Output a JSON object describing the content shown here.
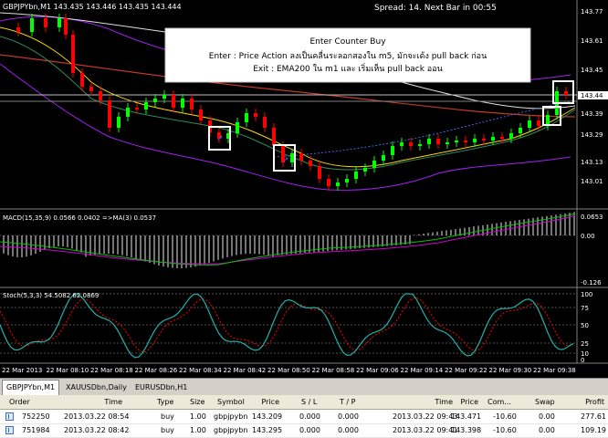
{
  "chart": {
    "title": "GBPJPYbn,M1  143.435 143.446 143.435 143.444",
    "spread_text": "Spread:  14.  Next Bar in 00:55",
    "annotation": [
      "Enter Counter Buy",
      "Enter : Price Action ลงเป็นคลื่นระลอกสองใน m5, มักจะเด้ง pull back ก่อน",
      "Exit : EMA200 ใน m1 และ เริ่มเห็น pull back ออน"
    ],
    "price_labels": [
      "143.77",
      "143.61",
      "143.45",
      "143.44",
      "143.39",
      "143.29",
      "143.13",
      "143.01"
    ],
    "current_price_label": "143.44",
    "macd_label": "MACD(15,35,9) 0.0566 0.0402  =>MA(3) 0.0537",
    "macd_scale": [
      "0.0653",
      "0.00",
      "-0.126"
    ],
    "stoch_label": "Stoch(5,3,3) 54.5082 62.0869",
    "stoch_scale": [
      "100",
      "75",
      "50",
      "25",
      "10",
      "0"
    ],
    "time_labels": [
      "22 Mar 2013",
      "22 Mar 08:10",
      "22 Mar 08:18",
      "22 Mar 08:26",
      "22 Mar 08:34",
      "22 Mar 08:42",
      "22 Mar 08:50",
      "22 Mar 08:58",
      "22 Mar 09:06",
      "22 Mar 09:14",
      "22 Mar 09:22",
      "22 Mar 09:30",
      "22 Mar 09:38"
    ],
    "colors": {
      "bull": "#00ff00",
      "bear": "#ff0000",
      "macd": "#ffffff",
      "stoch": "#20b2aa"
    }
  },
  "tabs": [
    {
      "label": "GBPJPYbn,M1",
      "active": true
    },
    {
      "label": "XAUUSDbn,Daily",
      "active": false
    },
    {
      "label": "EURUSDbn,H1",
      "active": false
    }
  ],
  "orders": {
    "columns": [
      "Order",
      "Time",
      "Type",
      "Size",
      "Symbol",
      "Price",
      "S / L",
      "T / P",
      "Time",
      "Price",
      "Com...",
      "Swap",
      "Profit"
    ],
    "rows": [
      [
        "752250",
        "2013.03.22 08:54",
        "buy",
        "1.00",
        "gbpjpybn",
        "143.209",
        "0.000",
        "0.000",
        "2013.03.22 09:43",
        "143.471",
        "-10.60",
        "0.00",
        "277.61"
      ],
      [
        "751984",
        "2013.03.22 08:42",
        "buy",
        "1.00",
        "gbpjpybn",
        "143.295",
        "0.000",
        "0.000",
        "2013.03.22 09:41",
        "143.398",
        "-10.60",
        "0.00",
        "109.19"
      ]
    ]
  }
}
